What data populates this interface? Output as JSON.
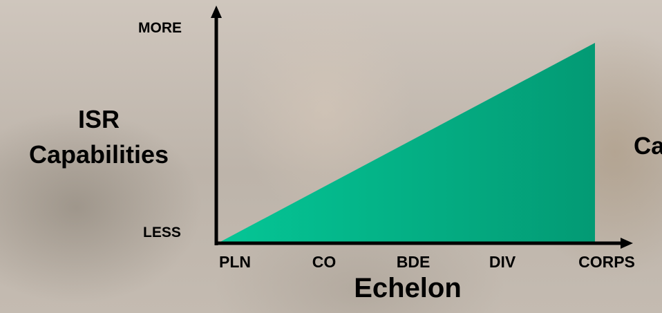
{
  "chart_data": {
    "type": "area",
    "categories": [
      "PLN",
      "CO",
      "BDE",
      "DIV",
      "CORPS"
    ],
    "values": [
      0,
      25,
      50,
      75,
      100
    ],
    "ylim": [
      0,
      100
    ],
    "y_axis_high_label": "MORE",
    "y_axis_low_label": "LESS",
    "ylabel_lines": [
      "ISR",
      "Capabilities"
    ],
    "xlabel": "Echelon",
    "grid": false,
    "fill_color": "#04c08d"
  },
  "side_text": "Ca"
}
